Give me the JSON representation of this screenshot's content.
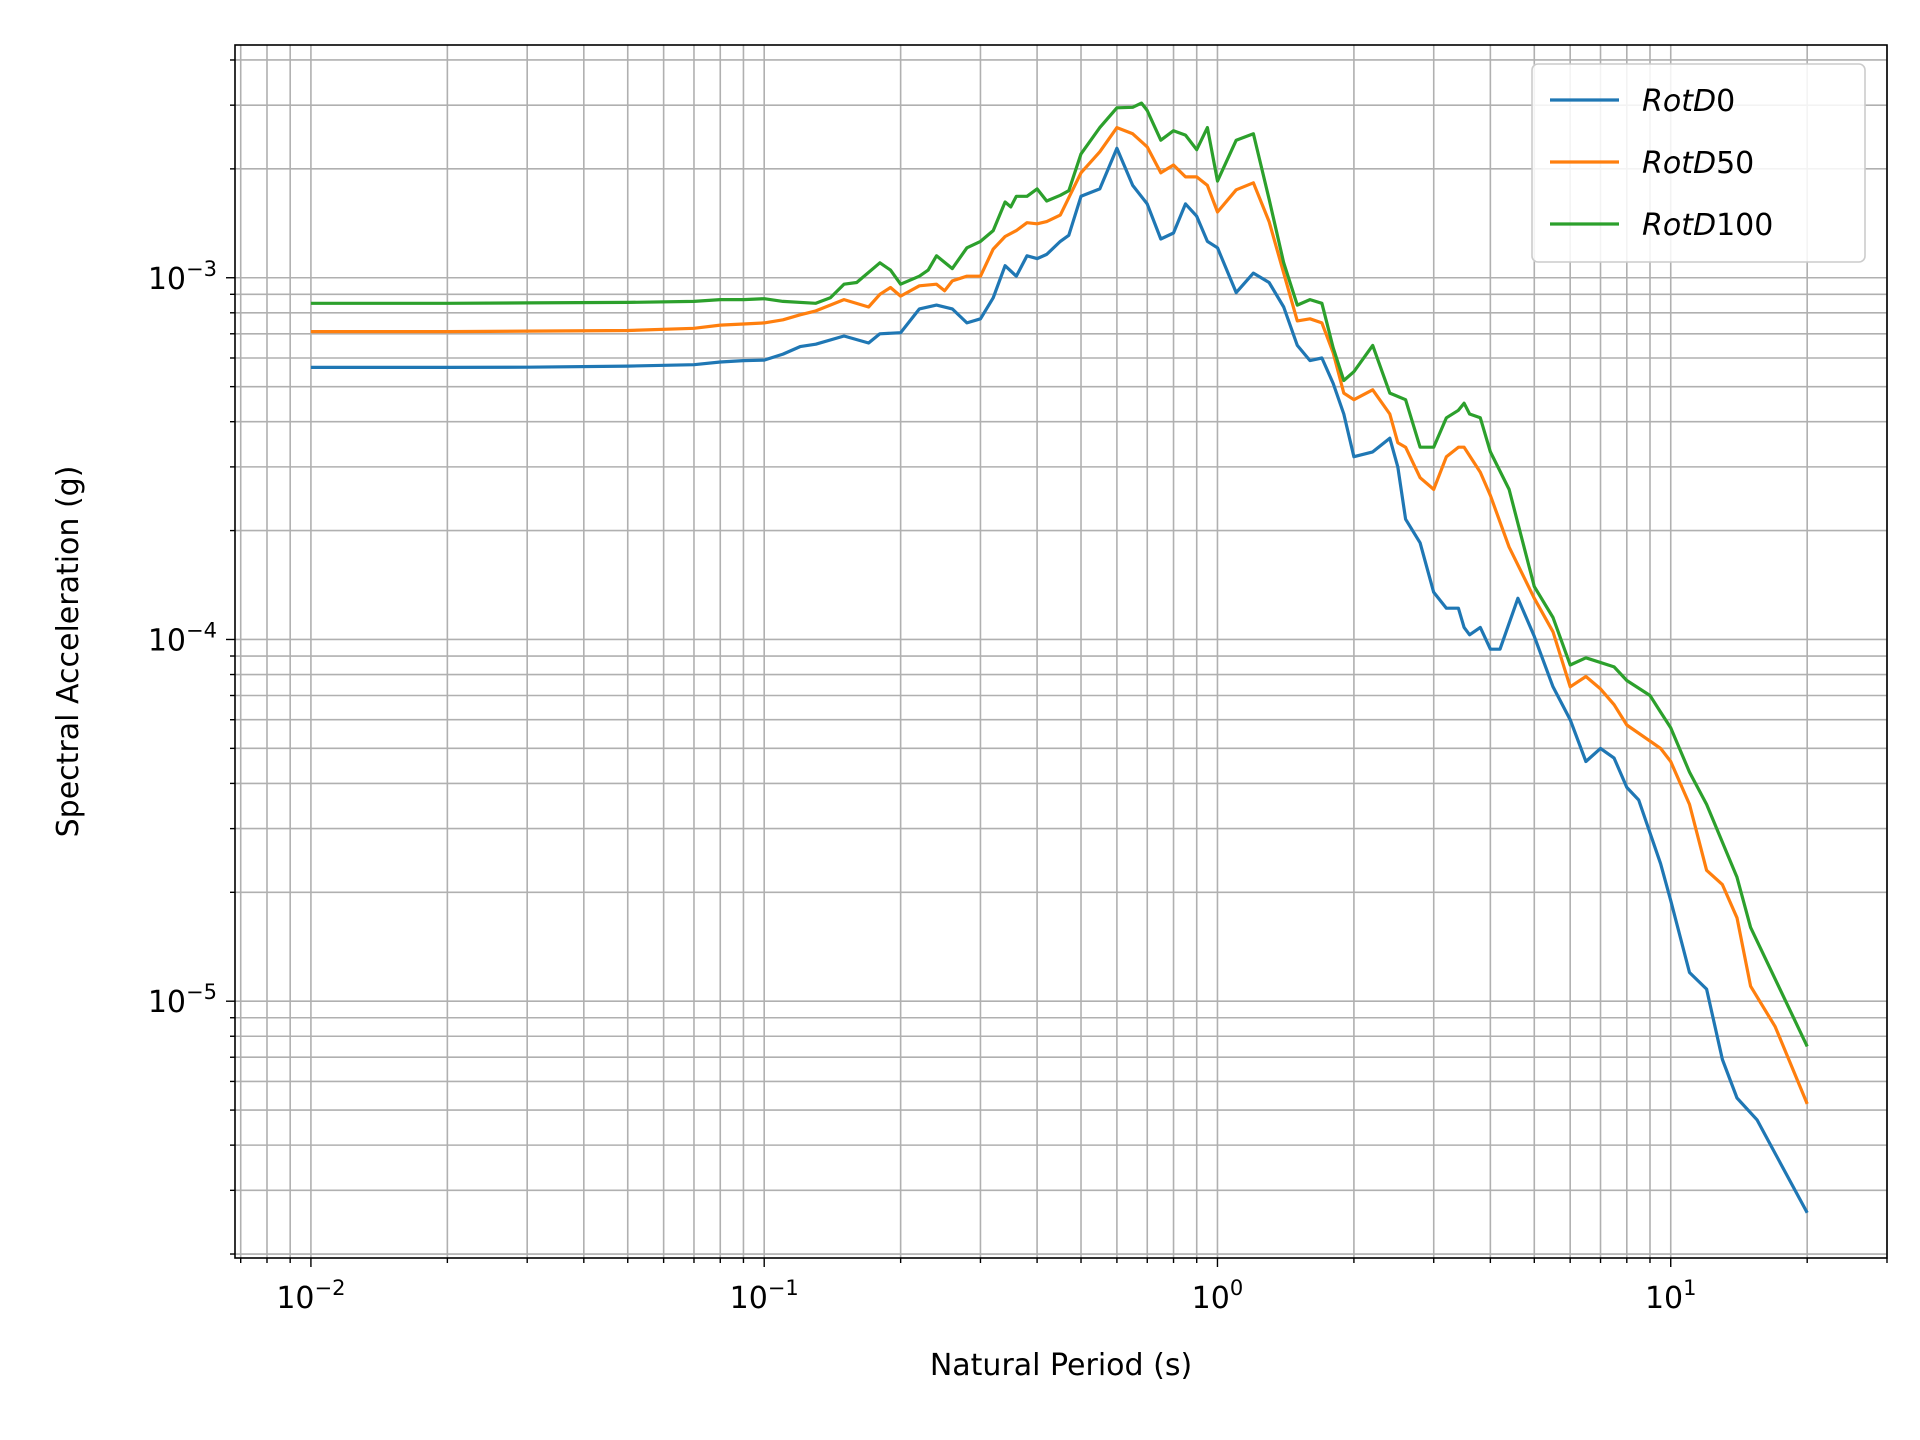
{
  "chart_data": {
    "type": "line",
    "title": "",
    "xlabel": "Natural Period (s)",
    "ylabel": "Spectral Acceleration (g)",
    "xscale": "log",
    "yscale": "log",
    "xlim": [
      0.0068,
      30
    ],
    "ylim": [
      1.95e-06,
      0.0044
    ],
    "grid": true,
    "grid_which": "both",
    "legend_position": "top-right",
    "x_ticks": [
      {
        "value": 0.01,
        "base": "10",
        "exp": "−2"
      },
      {
        "value": 0.1,
        "base": "10",
        "exp": "−1"
      },
      {
        "value": 1,
        "base": "10",
        "exp": "0"
      },
      {
        "value": 10,
        "base": "10",
        "exp": "1"
      }
    ],
    "y_ticks": [
      {
        "value": 1e-05,
        "base": "10",
        "exp": "−5"
      },
      {
        "value": 0.0001,
        "base": "10",
        "exp": "−4"
      },
      {
        "value": 0.001,
        "base": "10",
        "exp": "−3"
      }
    ],
    "series": [
      {
        "name": "RotD0",
        "legend_main": "RotD",
        "legend_suffix": "0",
        "color": "#1f77b4",
        "points": [
          [
            0.01,
            0.000565
          ],
          [
            0.02,
            0.000565
          ],
          [
            0.03,
            0.000566
          ],
          [
            0.05,
            0.00057
          ],
          [
            0.07,
            0.000575
          ],
          [
            0.08,
            0.000585
          ],
          [
            0.09,
            0.00059
          ],
          [
            0.1,
            0.000592
          ],
          [
            0.11,
            0.000615
          ],
          [
            0.12,
            0.000645
          ],
          [
            0.13,
            0.000655
          ],
          [
            0.15,
            0.00069
          ],
          [
            0.17,
            0.00066
          ],
          [
            0.18,
            0.0007
          ],
          [
            0.2,
            0.000705
          ],
          [
            0.22,
            0.00082
          ],
          [
            0.24,
            0.00084
          ],
          [
            0.26,
            0.00082
          ],
          [
            0.28,
            0.00075
          ],
          [
            0.3,
            0.00077
          ],
          [
            0.32,
            0.00088
          ],
          [
            0.34,
            0.00108
          ],
          [
            0.36,
            0.00101
          ],
          [
            0.38,
            0.00115
          ],
          [
            0.4,
            0.00113
          ],
          [
            0.42,
            0.00116
          ],
          [
            0.45,
            0.00126
          ],
          [
            0.47,
            0.00131
          ],
          [
            0.5,
            0.00168
          ],
          [
            0.55,
            0.00176
          ],
          [
            0.6,
            0.00228
          ],
          [
            0.65,
            0.0018
          ],
          [
            0.7,
            0.0016
          ],
          [
            0.75,
            0.00128
          ],
          [
            0.8,
            0.00133
          ],
          [
            0.85,
            0.0016
          ],
          [
            0.9,
            0.00148
          ],
          [
            0.95,
            0.00126
          ],
          [
            1.0,
            0.00121
          ],
          [
            1.1,
            0.00091
          ],
          [
            1.2,
            0.00103
          ],
          [
            1.3,
            0.00097
          ],
          [
            1.4,
            0.00083
          ],
          [
            1.5,
            0.00065
          ],
          [
            1.6,
            0.00059
          ],
          [
            1.7,
            0.0006
          ],
          [
            1.8,
            0.00051
          ],
          [
            1.9,
            0.00042
          ],
          [
            2.0,
            0.00032
          ],
          [
            2.2,
            0.00033
          ],
          [
            2.4,
            0.00036
          ],
          [
            2.5,
            0.0003
          ],
          [
            2.6,
            0.000215
          ],
          [
            2.8,
            0.000185
          ],
          [
            3.0,
            0.000135
          ],
          [
            3.2,
            0.000122
          ],
          [
            3.4,
            0.000122
          ],
          [
            3.5,
            0.000108
          ],
          [
            3.6,
            0.000103
          ],
          [
            3.8,
            0.000108
          ],
          [
            4.0,
            9.4e-05
          ],
          [
            4.2,
            9.4e-05
          ],
          [
            4.6,
            0.00013
          ],
          [
            5.0,
            0.000102
          ],
          [
            5.5,
            7.4e-05
          ],
          [
            6.0,
            6e-05
          ],
          [
            6.5,
            4.6e-05
          ],
          [
            7.0,
            5e-05
          ],
          [
            7.5,
            4.7e-05
          ],
          [
            8.0,
            3.9e-05
          ],
          [
            8.5,
            3.6e-05
          ],
          [
            9.5,
            2.4e-05
          ],
          [
            10.0,
            1.9e-05
          ],
          [
            11.0,
            1.2e-05
          ],
          [
            12.0,
            1.08e-05
          ],
          [
            13.0,
            6.9e-06
          ],
          [
            14.0,
            5.4e-06
          ],
          [
            15.5,
            4.7e-06
          ],
          [
            20.0,
            2.6e-06
          ]
        ]
      },
      {
        "name": "RotD50",
        "legend_main": "RotD",
        "legend_suffix": "50",
        "color": "#ff7f0e",
        "points": [
          [
            0.01,
            0.00071
          ],
          [
            0.02,
            0.00071
          ],
          [
            0.03,
            0.000712
          ],
          [
            0.05,
            0.000715
          ],
          [
            0.07,
            0.000725
          ],
          [
            0.08,
            0.00074
          ],
          [
            0.09,
            0.000745
          ],
          [
            0.1,
            0.00075
          ],
          [
            0.11,
            0.000765
          ],
          [
            0.12,
            0.00079
          ],
          [
            0.13,
            0.00081
          ],
          [
            0.15,
            0.00087
          ],
          [
            0.17,
            0.00083
          ],
          [
            0.18,
            0.0009
          ],
          [
            0.19,
            0.00094
          ],
          [
            0.2,
            0.00089
          ],
          [
            0.22,
            0.00095
          ],
          [
            0.24,
            0.00096
          ],
          [
            0.25,
            0.00092
          ],
          [
            0.26,
            0.00098
          ],
          [
            0.28,
            0.00101
          ],
          [
            0.3,
            0.00101
          ],
          [
            0.32,
            0.0012
          ],
          [
            0.34,
            0.0013
          ],
          [
            0.36,
            0.00135
          ],
          [
            0.38,
            0.00142
          ],
          [
            0.4,
            0.00141
          ],
          [
            0.42,
            0.00143
          ],
          [
            0.45,
            0.00149
          ],
          [
            0.5,
            0.00195
          ],
          [
            0.55,
            0.00223
          ],
          [
            0.6,
            0.0026
          ],
          [
            0.65,
            0.0025
          ],
          [
            0.7,
            0.0023
          ],
          [
            0.75,
            0.00195
          ],
          [
            0.8,
            0.00205
          ],
          [
            0.85,
            0.0019
          ],
          [
            0.9,
            0.0019
          ],
          [
            0.95,
            0.0018
          ],
          [
            1.0,
            0.00152
          ],
          [
            1.1,
            0.00175
          ],
          [
            1.2,
            0.00183
          ],
          [
            1.3,
            0.00143
          ],
          [
            1.4,
            0.00103
          ],
          [
            1.5,
            0.00076
          ],
          [
            1.6,
            0.00077
          ],
          [
            1.7,
            0.00075
          ],
          [
            1.8,
            0.00062
          ],
          [
            1.9,
            0.00048
          ],
          [
            2.0,
            0.00046
          ],
          [
            2.2,
            0.00049
          ],
          [
            2.4,
            0.00042
          ],
          [
            2.5,
            0.00035
          ],
          [
            2.6,
            0.00034
          ],
          [
            2.8,
            0.00028
          ],
          [
            3.0,
            0.00026
          ],
          [
            3.2,
            0.00032
          ],
          [
            3.4,
            0.00034
          ],
          [
            3.5,
            0.00034
          ],
          [
            3.8,
            0.00029
          ],
          [
            4.0,
            0.00025
          ],
          [
            4.4,
            0.00018
          ],
          [
            5.0,
            0.00013
          ],
          [
            5.5,
            0.000105
          ],
          [
            6.0,
            7.4e-05
          ],
          [
            6.5,
            7.9e-05
          ],
          [
            7.0,
            7.3e-05
          ],
          [
            7.5,
            6.6e-05
          ],
          [
            8.0,
            5.8e-05
          ],
          [
            9.5,
            5e-05
          ],
          [
            10.0,
            4.6e-05
          ],
          [
            11.0,
            3.5e-05
          ],
          [
            12.0,
            2.3e-05
          ],
          [
            13.0,
            2.1e-05
          ],
          [
            14.0,
            1.7e-05
          ],
          [
            15.0,
            1.1e-05
          ],
          [
            17.0,
            8.5e-06
          ],
          [
            20.0,
            5.2e-06
          ]
        ]
      },
      {
        "name": "RotD100",
        "legend_main": "RotD",
        "legend_suffix": "100",
        "color": "#2ca02c",
        "points": [
          [
            0.01,
            0.00085
          ],
          [
            0.02,
            0.00085
          ],
          [
            0.03,
            0.000852
          ],
          [
            0.05,
            0.000855
          ],
          [
            0.07,
            0.00086
          ],
          [
            0.08,
            0.00087
          ],
          [
            0.09,
            0.00087
          ],
          [
            0.1,
            0.000875
          ],
          [
            0.11,
            0.00086
          ],
          [
            0.13,
            0.00085
          ],
          [
            0.14,
            0.00088
          ],
          [
            0.15,
            0.00096
          ],
          [
            0.16,
            0.00097
          ],
          [
            0.18,
            0.0011
          ],
          [
            0.19,
            0.00105
          ],
          [
            0.2,
            0.00096
          ],
          [
            0.22,
            0.00101
          ],
          [
            0.23,
            0.00105
          ],
          [
            0.24,
            0.00115
          ],
          [
            0.26,
            0.00106
          ],
          [
            0.28,
            0.00121
          ],
          [
            0.3,
            0.00126
          ],
          [
            0.32,
            0.00135
          ],
          [
            0.34,
            0.00162
          ],
          [
            0.35,
            0.00157
          ],
          [
            0.36,
            0.00168
          ],
          [
            0.38,
            0.00168
          ],
          [
            0.4,
            0.00176
          ],
          [
            0.42,
            0.00163
          ],
          [
            0.45,
            0.00169
          ],
          [
            0.47,
            0.00174
          ],
          [
            0.5,
            0.0022
          ],
          [
            0.55,
            0.0026
          ],
          [
            0.6,
            0.00295
          ],
          [
            0.65,
            0.00296
          ],
          [
            0.68,
            0.00304
          ],
          [
            0.7,
            0.0029
          ],
          [
            0.75,
            0.0024
          ],
          [
            0.8,
            0.00255
          ],
          [
            0.85,
            0.00248
          ],
          [
            0.9,
            0.00226
          ],
          [
            0.95,
            0.0026
          ],
          [
            1.0,
            0.00185
          ],
          [
            1.1,
            0.0024
          ],
          [
            1.2,
            0.0025
          ],
          [
            1.3,
            0.00165
          ],
          [
            1.4,
            0.0011
          ],
          [
            1.5,
            0.00084
          ],
          [
            1.6,
            0.00087
          ],
          [
            1.7,
            0.00085
          ],
          [
            1.8,
            0.00064
          ],
          [
            1.9,
            0.00052
          ],
          [
            2.0,
            0.00055
          ],
          [
            2.2,
            0.00065
          ],
          [
            2.4,
            0.00048
          ],
          [
            2.6,
            0.00046
          ],
          [
            2.8,
            0.00034
          ],
          [
            3.0,
            0.00034
          ],
          [
            3.2,
            0.00041
          ],
          [
            3.4,
            0.00043
          ],
          [
            3.5,
            0.00045
          ],
          [
            3.6,
            0.00042
          ],
          [
            3.8,
            0.00041
          ],
          [
            4.0,
            0.00033
          ],
          [
            4.4,
            0.00026
          ],
          [
            5.0,
            0.00014
          ],
          [
            5.5,
            0.000115
          ],
          [
            6.0,
            8.5e-05
          ],
          [
            6.5,
            8.9e-05
          ],
          [
            7.5,
            8.4e-05
          ],
          [
            8.0,
            7.7e-05
          ],
          [
            9.0,
            7e-05
          ],
          [
            9.5,
            6.3e-05
          ],
          [
            10.0,
            5.7e-05
          ],
          [
            11.0,
            4.3e-05
          ],
          [
            12.0,
            3.5e-05
          ],
          [
            14.0,
            2.2e-05
          ],
          [
            15.0,
            1.6e-05
          ],
          [
            20.0,
            7.5e-06
          ]
        ]
      }
    ]
  }
}
